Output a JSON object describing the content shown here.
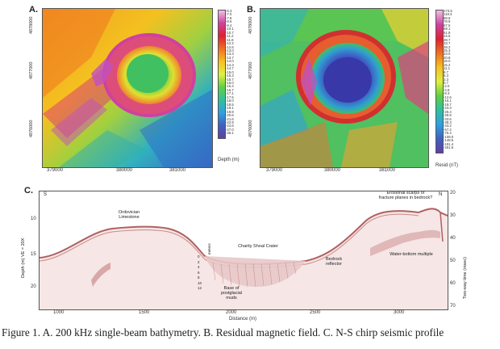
{
  "panels": {
    "a": {
      "letter": "A."
    },
    "b": {
      "letter": "B."
    },
    "c": {
      "letter": "C."
    }
  },
  "map_a": {
    "northing_ticks": [
      "4878000",
      "4877000",
      "4876000"
    ],
    "easting_ticks": [
      "379000",
      "380000",
      "381000"
    ],
    "colorbar_labels": [
      "-6.3",
      "-7.0",
      "-7.8",
      "-8.6",
      "-9.4",
      "-10.1",
      "-10.7",
      "-11.2",
      "-11.8",
      "-12.2",
      "-12.6",
      "-13.0",
      "-13.3",
      "-13.7",
      "-14.0",
      "-14.3",
      "-14.7",
      "-15.0",
      "-15.3",
      "-15.7",
      "-16.0",
      "-16.4",
      "-16.7",
      "-17.1",
      "-17.5",
      "-18.0",
      "-18.5",
      "-19.1",
      "-19.8",
      "-20.6",
      "-21.6",
      "-22.9",
      "-24.6",
      "-27.0",
      "-36.1"
    ],
    "colorbar_title": "Depth (m)"
  },
  "map_b": {
    "northing_ticks": [
      "4878000",
      "4877000",
      "4876000"
    ],
    "easting_ticks": [
      "379000",
      "380000",
      "381000"
    ],
    "colorbar_labels": [
      "173.5",
      "118.3",
      "89.8",
      "78.8",
      "67.5",
      "59.1",
      "51.8",
      "44.5",
      "39.7",
      "33.7",
      "29.2",
      "25.3",
      "23.0",
      "20.8",
      "18.0",
      "15.2",
      "11.1",
      "8.7",
      "5.3",
      "2.3",
      "0.7",
      "-2.0",
      "-4.8",
      "-8.3",
      "-12.6",
      "-16.1",
      "-19.7",
      "-23.3",
      "-26.4",
      "-28.9",
      "-33.6",
      "-38.3",
      "-43.2",
      "-57.2",
      "-75.4",
      "-108.0",
      "-148.5",
      "-191.4",
      "-251.6"
    ],
    "colorbar_title": "Resid (nT)"
  },
  "seismic": {
    "left_axis_label": "Depth (m)  VE = 20X",
    "right_axis_label": "Two-way time (msec)",
    "x_axis_label": "Distance (m)",
    "x_ticks": [
      "1000",
      "1500",
      "2000",
      "2500",
      "3000"
    ],
    "left_ticks": [
      "10",
      "15",
      "20"
    ],
    "right_ticks": [
      "20",
      "30",
      "40",
      "50",
      "60",
      "70"
    ],
    "south_label": "S",
    "north_label": "N",
    "inset_axis_label": "meters",
    "inset_ticks": [
      "0",
      "2",
      "4",
      "6",
      "8",
      "10",
      "12"
    ],
    "annotations": {
      "ordovician": "Ordovician\nLimestone",
      "crater": "Charity Shoal Crater",
      "bedrock": "Bedrock\nreflector",
      "base_postglacial": "Base of\npostglacial\nmuds",
      "erosional": "Erosional scarps or\nfracture planes in bedrock?",
      "water_multiple": "Water-bottom multiple"
    }
  },
  "caption": "Figure 1.  A. 200 kHz single-beam bathymetry.  B. Residual magnetic field.  C. N-S chirp seismic profile",
  "colors": {
    "caption": "#000000",
    "seismic_trace": "#c08080",
    "seismic_fill": "#e8c8c8"
  }
}
